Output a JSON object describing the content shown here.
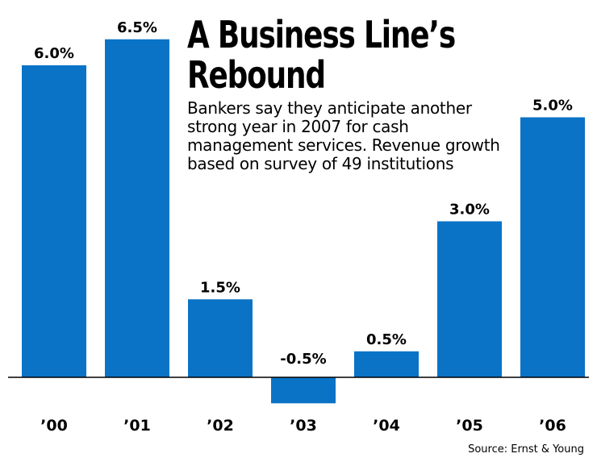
{
  "chart_data": {
    "type": "bar",
    "title": "A Business Line’s Rebound",
    "title_lines": [
      "A Business Line’s",
      "Rebound"
    ],
    "subtitle": "Bankers say they anticipate another strong year in 2007 for cash management services. Revenue growth based on survey of 49 institutions",
    "categories": [
      "’00",
      "’01",
      "’02",
      "’03",
      "’04",
      "’05",
      "’06"
    ],
    "values": [
      6.0,
      6.5,
      1.5,
      -0.5,
      0.5,
      3.0,
      5.0
    ],
    "data_labels": [
      "6.0%",
      "6.5%",
      "1.5%",
      "-0.5%",
      "0.5%",
      "3.0%",
      "5.0%"
    ],
    "unit": "%",
    "ylim": [
      -0.5,
      6.5
    ],
    "grid": false,
    "legend": "none",
    "bar_color": "#0a73c6",
    "source": "Source: Ernst & Young"
  }
}
